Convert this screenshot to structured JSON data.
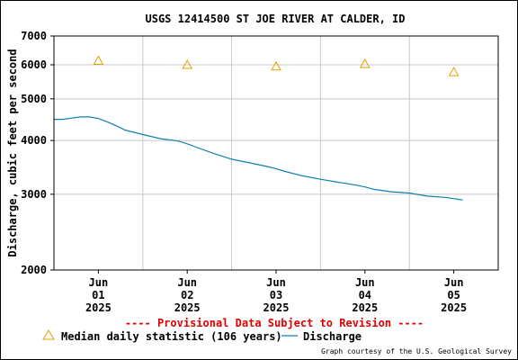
{
  "chart_data": {
    "type": "line",
    "title": "USGS 12414500 ST JOE RIVER AT CALDER, ID",
    "ylabel": "Discharge, cubic feet per second",
    "xlabel": "",
    "y_scale": "log",
    "ylim": [
      2000,
      7000
    ],
    "y_ticks": [
      2000,
      3000,
      4000,
      5000,
      6000,
      7000
    ],
    "y_tick_labels": [
      "2000",
      "3000",
      "4000",
      "5000",
      "6000",
      "7000"
    ],
    "x_ticks": [
      {
        "day": 1,
        "lines": [
          "Jun",
          "01",
          "2025"
        ]
      },
      {
        "day": 2,
        "lines": [
          "Jun",
          "02",
          "2025"
        ]
      },
      {
        "day": 3,
        "lines": [
          "Jun",
          "03",
          "2025"
        ]
      },
      {
        "day": 4,
        "lines": [
          "Jun",
          "04",
          "2025"
        ]
      },
      {
        "day": 5,
        "lines": [
          "Jun",
          "05",
          "2025"
        ]
      }
    ],
    "xlim": [
      0.5,
      5.5
    ],
    "grid": true,
    "series": [
      {
        "name": "Median daily statistic (106 years)",
        "kind": "marker",
        "marker": "triangle-open",
        "color": "#E69F00",
        "x": [
          1,
          2,
          3,
          4,
          5
        ],
        "y": [
          6130,
          6000,
          5950,
          6030,
          5770
        ]
      },
      {
        "name": "Discharge",
        "kind": "line",
        "color": "#0F7FB0",
        "x": [
          0.5,
          0.6,
          0.7,
          0.8,
          0.9,
          1.0,
          1.1,
          1.2,
          1.3,
          1.5,
          1.7,
          1.9,
          2.0,
          2.1,
          2.3,
          2.5,
          2.7,
          2.9,
          3.0,
          3.1,
          3.3,
          3.5,
          3.7,
          3.9,
          4.0,
          4.1,
          4.3,
          4.5,
          4.7,
          4.9,
          5.0,
          5.1
        ],
        "y": [
          4480,
          4480,
          4510,
          4540,
          4540,
          4500,
          4420,
          4330,
          4230,
          4130,
          4040,
          3990,
          3930,
          3860,
          3730,
          3620,
          3550,
          3480,
          3440,
          3390,
          3310,
          3250,
          3200,
          3150,
          3120,
          3080,
          3040,
          3020,
          2970,
          2950,
          2930,
          2910
        ]
      }
    ],
    "legend": {
      "position": "bottom",
      "items": [
        {
          "label": "Median daily statistic (106 years)",
          "symbol": "triangle-open",
          "color": "#E69F00"
        },
        {
          "label": "Discharge",
          "symbol": "line",
          "color": "#0F7FB0"
        }
      ]
    },
    "annotations": {
      "provisional": "---- Provisional Data Subject to Revision ----",
      "provisional_color": "#E00000",
      "credit": "Graph courtesy of the U.S. Geological Survey"
    }
  }
}
